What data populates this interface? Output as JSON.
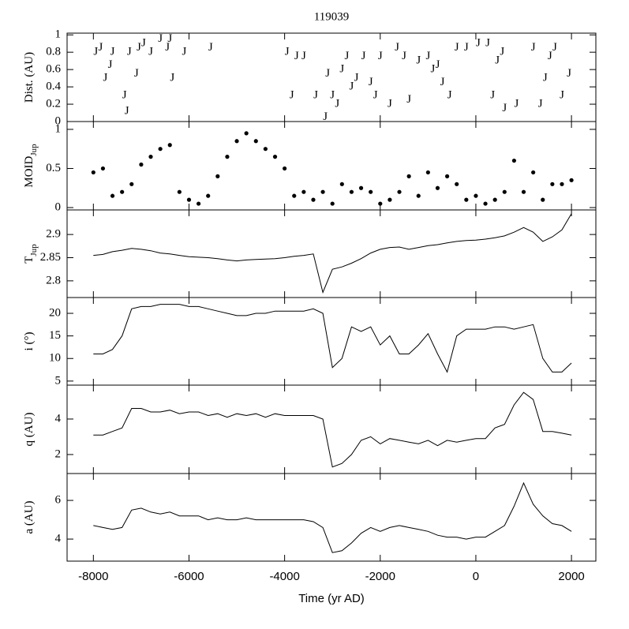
{
  "chart_data": [
    {
      "type": "text-scatter",
      "title": "119039",
      "ylabel": "Dist. (AU)",
      "marker": "J",
      "xlim": [
        -8550,
        2510
      ],
      "xticks": [
        -8000,
        -6000,
        -4000,
        -2000,
        0,
        2000
      ],
      "ylim": [
        0,
        1.02
      ],
      "yticks": [
        0,
        0.2,
        0.4,
        0.6,
        0.8,
        1
      ],
      "x": [
        -7950,
        -7850,
        -7750,
        -7650,
        -7600,
        -7350,
        -7300,
        -7250,
        -7100,
        -7050,
        -6950,
        -6800,
        -6600,
        -6450,
        -6400,
        -6350,
        -6100,
        -5550,
        -3950,
        -3850,
        -3750,
        -3600,
        -3350,
        -3150,
        -3100,
        -3000,
        -2900,
        -2800,
        -2700,
        -2600,
        -2500,
        -2350,
        -2200,
        -2100,
        -2000,
        -1800,
        -1650,
        -1500,
        -1400,
        -1200,
        -1000,
        -900,
        -800,
        -700,
        -550,
        -400,
        -200,
        50,
        250,
        350,
        450,
        550,
        600,
        850,
        1200,
        1350,
        1450,
        1550,
        1650,
        1800,
        1950
      ],
      "values": [
        0.8,
        0.85,
        0.5,
        0.65,
        0.8,
        0.3,
        0.12,
        0.8,
        0.55,
        0.85,
        0.9,
        0.8,
        0.95,
        0.85,
        0.95,
        0.5,
        0.8,
        0.85,
        0.8,
        0.3,
        0.75,
        0.75,
        0.3,
        0.05,
        0.55,
        0.3,
        0.2,
        0.6,
        0.75,
        0.4,
        0.5,
        0.75,
        0.45,
        0.3,
        0.75,
        0.2,
        0.85,
        0.75,
        0.25,
        0.7,
        0.75,
        0.6,
        0.65,
        0.45,
        0.3,
        0.85,
        0.85,
        0.9,
        0.9,
        0.3,
        0.7,
        0.8,
        0.15,
        0.2,
        0.85,
        0.2,
        0.5,
        0.75,
        0.85,
        0.3,
        0.55
      ]
    },
    {
      "type": "scatter",
      "ylabel": "MOID",
      "ylabel_sub": "Jup",
      "xlim": [
        -8550,
        2510
      ],
      "xticks": [
        -8000,
        -6000,
        -4000,
        -2000,
        0,
        2000
      ],
      "ylim": [
        -0.03,
        1.1
      ],
      "yticks": [
        0,
        0.5,
        1
      ],
      "x": [
        -8000,
        -7800,
        -7600,
        -7400,
        -7200,
        -7000,
        -6800,
        -6600,
        -6400,
        -6200,
        -6000,
        -5800,
        -5600,
        -5400,
        -5200,
        -5000,
        -4800,
        -4600,
        -4400,
        -4200,
        -4000,
        -3800,
        -3600,
        -3400,
        -3200,
        -3000,
        -2800,
        -2600,
        -2400,
        -2200,
        -2000,
        -1800,
        -1600,
        -1400,
        -1200,
        -1000,
        -800,
        -600,
        -400,
        -200,
        0,
        200,
        400,
        600,
        800,
        1000,
        1200,
        1400,
        1600,
        1800,
        2000
      ],
      "values": [
        0.45,
        0.5,
        0.15,
        0.2,
        0.3,
        0.55,
        0.65,
        0.75,
        0.8,
        0.2,
        0.1,
        0.05,
        0.15,
        0.4,
        0.65,
        0.85,
        0.95,
        0.85,
        0.75,
        0.65,
        0.5,
        0.15,
        0.2,
        0.1,
        0.2,
        0.05,
        0.3,
        0.2,
        0.25,
        0.2,
        0.05,
        0.1,
        0.2,
        0.4,
        0.15,
        0.45,
        0.25,
        0.4,
        0.3,
        0.1,
        0.15,
        0.05,
        0.1,
        0.2,
        0.6,
        0.2,
        0.45,
        0.1,
        0.3,
        0.3,
        0.35
      ]
    },
    {
      "type": "line",
      "ylabel": "T",
      "ylabel_sub": "Jup",
      "xlim": [
        -8550,
        2510
      ],
      "xticks": [
        -8000,
        -6000,
        -4000,
        -2000,
        0,
        2000
      ],
      "ylim": [
        2.764,
        2.953
      ],
      "yticks": [
        2.8,
        2.85,
        2.9
      ],
      "x": [
        -8000,
        -7800,
        -7600,
        -7400,
        -7200,
        -7000,
        -6800,
        -6600,
        -6400,
        -6200,
        -6000,
        -5800,
        -5600,
        -5400,
        -5200,
        -5000,
        -4800,
        -4600,
        -4400,
        -4200,
        -4000,
        -3800,
        -3600,
        -3400,
        -3200,
        -3000,
        -2800,
        -2600,
        -2400,
        -2200,
        -2000,
        -1800,
        -1600,
        -1400,
        -1200,
        -1000,
        -800,
        -600,
        -400,
        -200,
        0,
        200,
        400,
        600,
        800,
        1000,
        1200,
        1400,
        1600,
        1800,
        2000
      ],
      "values": [
        2.855,
        2.857,
        2.863,
        2.866,
        2.87,
        2.868,
        2.865,
        2.86,
        2.858,
        2.855,
        2.852,
        2.851,
        2.85,
        2.848,
        2.845,
        2.843,
        2.845,
        2.846,
        2.847,
        2.848,
        2.85,
        2.853,
        2.855,
        2.858,
        2.775,
        2.825,
        2.83,
        2.838,
        2.848,
        2.86,
        2.868,
        2.872,
        2.873,
        2.868,
        2.872,
        2.876,
        2.878,
        2.882,
        2.885,
        2.887,
        2.888,
        2.89,
        2.893,
        2.897,
        2.905,
        2.915,
        2.905,
        2.885,
        2.895,
        2.91,
        2.945
      ]
    },
    {
      "type": "line",
      "ylabel": "i (°)",
      "xlim": [
        -8550,
        2510
      ],
      "xticks": [
        -8000,
        -6000,
        -4000,
        -2000,
        0,
        2000
      ],
      "ylim": [
        4.1,
        23.5
      ],
      "yticks": [
        5,
        10,
        15,
        20
      ],
      "x": [
        -8000,
        -7800,
        -7600,
        -7400,
        -7200,
        -7000,
        -6800,
        -6600,
        -6400,
        -6200,
        -6000,
        -5800,
        -5600,
        -5400,
        -5200,
        -5000,
        -4800,
        -4600,
        -4400,
        -4200,
        -4000,
        -3800,
        -3600,
        -3400,
        -3200,
        -3000,
        -2800,
        -2600,
        -2400,
        -2200,
        -2000,
        -1800,
        -1600,
        -1400,
        -1200,
        -1000,
        -800,
        -600,
        -400,
        -200,
        0,
        200,
        400,
        600,
        800,
        1000,
        1200,
        1400,
        1600,
        1800,
        2000
      ],
      "values": [
        11,
        11,
        12,
        15,
        21,
        21.5,
        21.5,
        22,
        22,
        22,
        21.5,
        21.5,
        21,
        20.5,
        20,
        19.5,
        19.5,
        20,
        20,
        20.5,
        20.5,
        20.5,
        20.5,
        21,
        20,
        8,
        10,
        17,
        16,
        17,
        13,
        15,
        11,
        11,
        13,
        15.5,
        11,
        7,
        15,
        16.5,
        16.5,
        16.5,
        17,
        17,
        16.5,
        17,
        17.5,
        10,
        7,
        7,
        9
      ]
    },
    {
      "type": "line",
      "ylabel": "q (AU)",
      "xlim": [
        -8550,
        2510
      ],
      "xticks": [
        -8000,
        -6000,
        -4000,
        -2000,
        0,
        2000
      ],
      "ylim": [
        0.93,
        5.91
      ],
      "yticks": [
        2,
        4
      ],
      "x": [
        -8000,
        -7800,
        -7600,
        -7400,
        -7200,
        -7000,
        -6800,
        -6600,
        -6400,
        -6200,
        -6000,
        -5800,
        -5600,
        -5400,
        -5200,
        -5000,
        -4800,
        -4600,
        -4400,
        -4200,
        -4000,
        -3800,
        -3600,
        -3400,
        -3200,
        -3000,
        -2800,
        -2600,
        -2400,
        -2200,
        -2000,
        -1800,
        -1600,
        -1400,
        -1200,
        -1000,
        -800,
        -600,
        -400,
        -200,
        0,
        200,
        400,
        600,
        800,
        1000,
        1200,
        1400,
        1600,
        1800,
        2000
      ],
      "values": [
        3.1,
        3.1,
        3.3,
        3.5,
        4.6,
        4.6,
        4.4,
        4.4,
        4.5,
        4.3,
        4.4,
        4.4,
        4.2,
        4.3,
        4.1,
        4.3,
        4.2,
        4.3,
        4.1,
        4.3,
        4.2,
        4.2,
        4.2,
        4.2,
        4.0,
        1.3,
        1.5,
        2.0,
        2.8,
        3.0,
        2.6,
        2.9,
        2.8,
        2.7,
        2.6,
        2.8,
        2.5,
        2.8,
        2.7,
        2.8,
        2.9,
        2.9,
        3.5,
        3.7,
        4.8,
        5.5,
        5.1,
        3.3,
        3.3,
        3.2,
        3.1
      ]
    },
    {
      "type": "line",
      "ylabel": "a (AU)",
      "xlabel": "Time (yr AD)",
      "xlim": [
        -8550,
        2510
      ],
      "xticks": [
        -8000,
        -6000,
        -4000,
        -2000,
        0,
        2000
      ],
      "ylim": [
        2.86,
        7.39
      ],
      "yticks": [
        4,
        6
      ],
      "x": [
        -8000,
        -7800,
        -7600,
        -7400,
        -7200,
        -7000,
        -6800,
        -6600,
        -6400,
        -6200,
        -6000,
        -5800,
        -5600,
        -5400,
        -5200,
        -5000,
        -4800,
        -4600,
        -4400,
        -4200,
        -4000,
        -3800,
        -3600,
        -3400,
        -3200,
        -3000,
        -2800,
        -2600,
        -2400,
        -2200,
        -2000,
        -1800,
        -1600,
        -1400,
        -1200,
        -1000,
        -800,
        -600,
        -400,
        -200,
        0,
        200,
        400,
        600,
        800,
        1000,
        1200,
        1400,
        1600,
        1800,
        2000
      ],
      "values": [
        4.7,
        4.6,
        4.5,
        4.6,
        5.5,
        5.6,
        5.4,
        5.3,
        5.4,
        5.2,
        5.2,
        5.2,
        5.0,
        5.1,
        5.0,
        5.0,
        5.1,
        5.0,
        5.0,
        5.0,
        5.0,
        5.0,
        5.0,
        4.9,
        4.6,
        3.3,
        3.4,
        3.8,
        4.3,
        4.6,
        4.4,
        4.6,
        4.7,
        4.6,
        4.5,
        4.4,
        4.2,
        4.1,
        4.1,
        4.0,
        4.1,
        4.1,
        4.4,
        4.7,
        5.7,
        6.9,
        5.8,
        5.2,
        4.8,
        4.7,
        4.4
      ]
    }
  ]
}
